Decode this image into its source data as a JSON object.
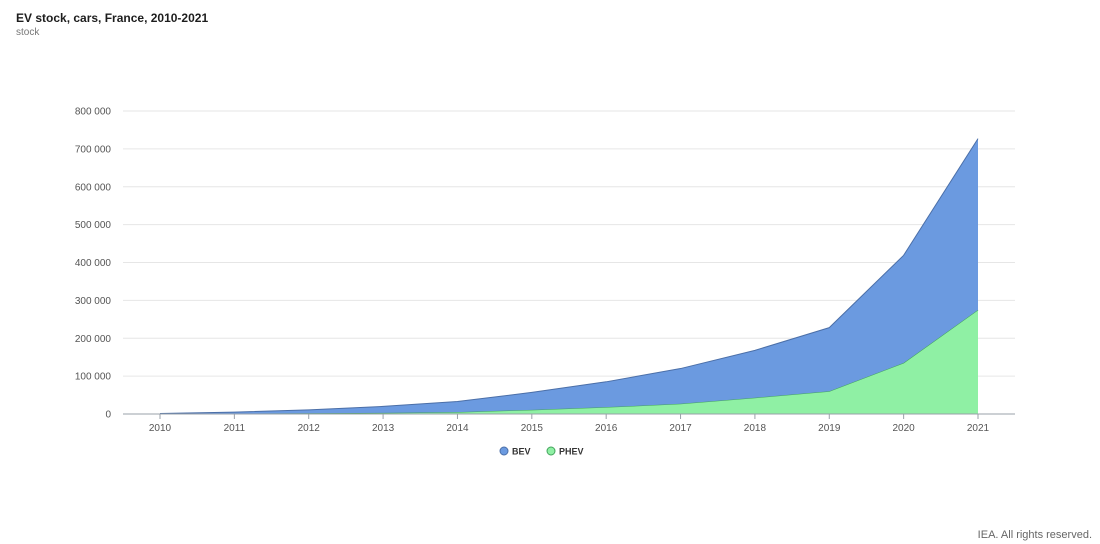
{
  "header": {
    "title": "EV stock, cars, France, 2010-2021",
    "subtitle": "stock"
  },
  "footer": {
    "credit": "IEA. All rights reserved."
  },
  "chart_data": {
    "type": "area",
    "stacked": true,
    "x": [
      "2010",
      "2011",
      "2012",
      "2013",
      "2014",
      "2015",
      "2016",
      "2017",
      "2018",
      "2019",
      "2020",
      "2021"
    ],
    "ylim": [
      0,
      800000
    ],
    "yticks": [
      0,
      100000,
      200000,
      300000,
      400000,
      500000,
      600000,
      700000,
      800000
    ],
    "ytick_labels": [
      "0",
      "100 000",
      "200 000",
      "300 000",
      "400 000",
      "500 000",
      "600 000",
      "700 000",
      "800 000"
    ],
    "grid": "horizontal",
    "legend_position": "bottom",
    "series": [
      {
        "name": "PHEV",
        "color": "#8ff0a4",
        "stroke": "#43a35c",
        "values": [
          200,
          1000,
          2000,
          3000,
          5000,
          11000,
          18000,
          27000,
          43000,
          60000,
          135000,
          275000
        ]
      },
      {
        "name": "BEV",
        "color": "#6b9ae0",
        "stroke": "#4b6fa8",
        "values": [
          1000,
          4000,
          9000,
          17000,
          28000,
          46000,
          67000,
          93000,
          125000,
          168000,
          284000,
          452000
        ]
      }
    ]
  }
}
